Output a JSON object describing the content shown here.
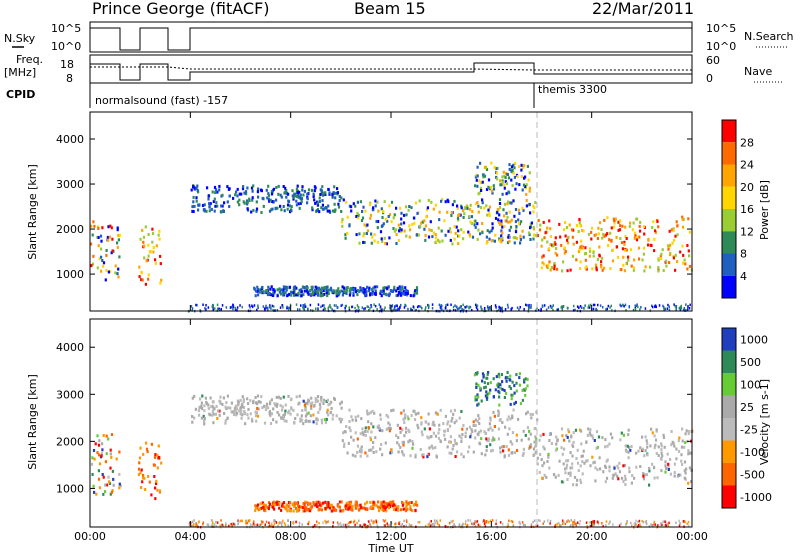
{
  "header": {
    "station": "Prince George (fitACF)",
    "beam": "Beam 15",
    "date": "22/Mar/2011"
  },
  "panels": {
    "nsky": {
      "label": "N.Sky",
      "tick_top": "10^5",
      "tick_bottom": "10^0",
      "right_label": "N.Search",
      "right_top": "10^5",
      "right_bottom": "10^0"
    },
    "freq": {
      "label_top": "Freq.",
      "label_bottom": "[MHz]",
      "tick_top": "18",
      "tick_bottom": "8",
      "right_label": "Nave",
      "right_top": "60",
      "right_bottom": "0"
    },
    "cpid": {
      "label": "CPID",
      "segments": [
        {
          "start_hour": 0.0,
          "end_hour": 17.8,
          "text": "normalsound (fast) -157"
        },
        {
          "start_hour": 17.8,
          "end_hour": 24.0,
          "text": "themis 3300"
        }
      ]
    }
  },
  "power": {
    "colorbar_label": "Power [dB]",
    "colorbar_ticks": [
      "28",
      "24",
      "20",
      "16",
      "12",
      "8",
      "4"
    ],
    "colors": [
      "#ff0000",
      "#ff6a00",
      "#ffa500",
      "#ffd700",
      "#9acd32",
      "#2e8b57",
      "#1f5fbf",
      "#0000ff"
    ]
  },
  "velocity": {
    "colorbar_label": "Velocity [m s-1]",
    "colorbar_ticks": [
      "1000",
      "500",
      "100",
      "25",
      "-25",
      "-100",
      "-500",
      "-1000"
    ],
    "colors": [
      "#1f3fbf",
      "#2e8b57",
      "#66cc33",
      "#aaaaaa",
      "#bbbbbb",
      "#ff9900",
      "#ff6600",
      "#ff0000"
    ]
  },
  "chart_data": [
    {
      "type": "heatmap",
      "name": "power",
      "ylabel": "Slant Range [km]",
      "x": [
        "00:00",
        "04:00",
        "08:00",
        "12:00",
        "16:00",
        "20:00",
        "00:00"
      ],
      "yticks": [
        1000,
        2000,
        3000,
        4000
      ],
      "ylim": [
        180,
        4600
      ],
      "xlim_hours": [
        0,
        24
      ],
      "bands": [
        {
          "start_hour": 0.0,
          "end_hour": 1.2,
          "range_low": 900,
          "range_high": 2200,
          "level": "mixed"
        },
        {
          "start_hour": 1.9,
          "end_hour": 2.8,
          "range_low": 800,
          "range_high": 2100,
          "level": "high"
        },
        {
          "start_hour": 4.0,
          "end_hour": 10.0,
          "range_low": 2400,
          "range_high": 3000,
          "level": "low"
        },
        {
          "start_hour": 10.0,
          "end_hour": 17.8,
          "range_low": 1700,
          "range_high": 2700,
          "level": "medium"
        },
        {
          "start_hour": 15.3,
          "end_hour": 17.5,
          "range_low": 2800,
          "range_high": 3500,
          "level": "medium"
        },
        {
          "start_hour": 17.8,
          "end_hour": 24.0,
          "range_low": 1100,
          "range_high": 2300,
          "level": "high"
        },
        {
          "start_hour": 6.5,
          "end_hour": 13.0,
          "range_low": 550,
          "range_high": 750,
          "level": "low"
        }
      ]
    },
    {
      "type": "heatmap",
      "name": "velocity",
      "ylabel": "Slant Range [km]",
      "xlabel": "Time UT",
      "x": [
        "00:00",
        "04:00",
        "08:00",
        "12:00",
        "16:00",
        "20:00",
        "00:00"
      ],
      "yticks": [
        1000,
        2000,
        3000,
        4000
      ],
      "ylim": [
        180,
        4600
      ],
      "xlim_hours": [
        0,
        24
      ],
      "bands": [
        {
          "start_hour": 0.0,
          "end_hour": 1.2,
          "range_low": 900,
          "range_high": 2200,
          "level": "mixed"
        },
        {
          "start_hour": 1.9,
          "end_hour": 2.8,
          "range_low": 800,
          "range_high": 2100,
          "level": "negative"
        },
        {
          "start_hour": 4.0,
          "end_hour": 10.0,
          "range_low": 2400,
          "range_high": 3000,
          "level": "near-zero"
        },
        {
          "start_hour": 10.0,
          "end_hour": 17.8,
          "range_low": 1700,
          "range_high": 2700,
          "level": "near-zero"
        },
        {
          "start_hour": 15.3,
          "end_hour": 17.5,
          "range_low": 2800,
          "range_high": 3500,
          "level": "positive"
        },
        {
          "start_hour": 17.8,
          "end_hour": 24.0,
          "range_low": 1100,
          "range_high": 2300,
          "level": "near-zero"
        },
        {
          "start_hour": 6.5,
          "end_hour": 13.0,
          "range_low": 550,
          "range_high": 750,
          "level": "negative"
        }
      ]
    }
  ]
}
